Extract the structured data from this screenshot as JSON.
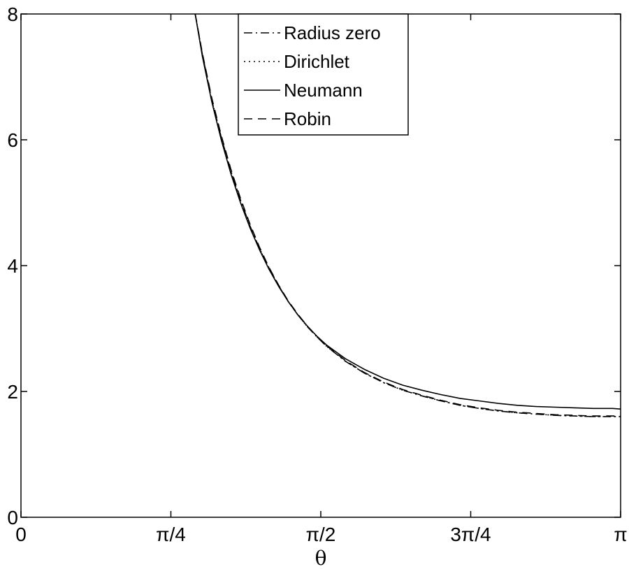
{
  "chart_data": {
    "type": "line",
    "title": "",
    "xlabel": "θ",
    "ylabel": "",
    "xlim": [
      0,
      3.14159265
    ],
    "ylim": [
      0,
      8
    ],
    "x_ticks": [
      {
        "value": 0,
        "label": "0"
      },
      {
        "value": 0.785398,
        "label": "π/4"
      },
      {
        "value": 1.570796,
        "label": "π/2"
      },
      {
        "value": 2.356194,
        "label": "3π/4"
      },
      {
        "value": 3.141593,
        "label": "π"
      }
    ],
    "y_ticks": [
      {
        "value": 0,
        "label": "0"
      },
      {
        "value": 2,
        "label": "2"
      },
      {
        "value": 4,
        "label": "4"
      },
      {
        "value": 6,
        "label": "6"
      },
      {
        "value": 8,
        "label": "8"
      }
    ],
    "grid": false,
    "legend_position": "top-center",
    "series": [
      {
        "name": "Radius zero",
        "style": "dash-dot",
        "color": "#000000",
        "x": [
          0.913,
          0.95,
          1.0,
          1.05,
          1.1,
          1.15,
          1.2,
          1.25,
          1.3,
          1.35,
          1.4,
          1.45,
          1.5,
          1.55,
          1.6,
          1.7,
          1.8,
          1.9,
          2.0,
          2.1,
          2.2,
          2.3,
          2.4,
          2.5,
          2.6,
          2.7,
          2.8,
          2.9,
          3.0,
          3.1,
          3.1416
        ],
        "y": [
          8.0,
          7.36,
          6.63,
          6.03,
          5.5,
          5.04,
          4.63,
          4.27,
          3.96,
          3.68,
          3.43,
          3.22,
          3.03,
          2.87,
          2.72,
          2.48,
          2.29,
          2.14,
          2.02,
          1.93,
          1.85,
          1.78,
          1.73,
          1.69,
          1.66,
          1.64,
          1.62,
          1.61,
          1.6,
          1.6,
          1.6
        ]
      },
      {
        "name": "Dirichlet",
        "style": "dotted",
        "color": "#000000",
        "x": [
          0.913,
          0.95,
          1.0,
          1.05,
          1.1,
          1.15,
          1.2,
          1.25,
          1.3,
          1.35,
          1.4,
          1.45,
          1.5,
          1.55,
          1.6,
          1.7,
          1.8,
          1.9,
          2.0,
          2.1,
          2.2,
          2.3,
          2.4,
          2.5,
          2.6,
          2.7,
          2.8,
          2.9,
          3.0,
          3.1,
          3.1416
        ],
        "y": [
          8.0,
          7.36,
          6.63,
          6.03,
          5.5,
          5.04,
          4.63,
          4.27,
          3.96,
          3.68,
          3.43,
          3.22,
          3.03,
          2.87,
          2.72,
          2.48,
          2.29,
          2.14,
          2.02,
          1.93,
          1.85,
          1.78,
          1.73,
          1.69,
          1.66,
          1.64,
          1.62,
          1.61,
          1.6,
          1.6,
          1.6
        ]
      },
      {
        "name": "Neumann",
        "style": "solid",
        "color": "#000000",
        "x": [
          0.913,
          0.95,
          1.0,
          1.05,
          1.1,
          1.15,
          1.2,
          1.25,
          1.3,
          1.35,
          1.4,
          1.45,
          1.5,
          1.55,
          1.6,
          1.7,
          1.8,
          1.9,
          2.0,
          2.1,
          2.2,
          2.3,
          2.4,
          2.5,
          2.6,
          2.7,
          2.8,
          2.9,
          3.0,
          3.1,
          3.1416
        ],
        "y": [
          8.0,
          7.33,
          6.6,
          5.99,
          5.46,
          5.0,
          4.6,
          4.25,
          3.94,
          3.67,
          3.43,
          3.22,
          3.04,
          2.88,
          2.74,
          2.52,
          2.35,
          2.21,
          2.1,
          2.02,
          1.95,
          1.89,
          1.85,
          1.81,
          1.78,
          1.76,
          1.75,
          1.74,
          1.73,
          1.73,
          1.72
        ]
      },
      {
        "name": "Robin",
        "style": "dashed",
        "color": "#000000",
        "x": [
          0.913,
          0.95,
          1.0,
          1.05,
          1.1,
          1.15,
          1.2,
          1.25,
          1.3,
          1.35,
          1.4,
          1.45,
          1.5,
          1.55,
          1.6,
          1.7,
          1.8,
          1.9,
          2.0,
          2.1,
          2.2,
          2.3,
          2.4,
          2.5,
          2.6,
          2.7,
          2.8,
          2.9,
          3.0,
          3.1,
          3.1416
        ],
        "y": [
          8.0,
          7.38,
          6.66,
          6.06,
          5.53,
          5.07,
          4.66,
          4.29,
          3.97,
          3.69,
          3.44,
          3.23,
          3.04,
          2.87,
          2.73,
          2.49,
          2.3,
          2.15,
          2.03,
          1.94,
          1.86,
          1.79,
          1.74,
          1.7,
          1.67,
          1.65,
          1.63,
          1.62,
          1.61,
          1.61,
          1.61
        ]
      }
    ]
  }
}
